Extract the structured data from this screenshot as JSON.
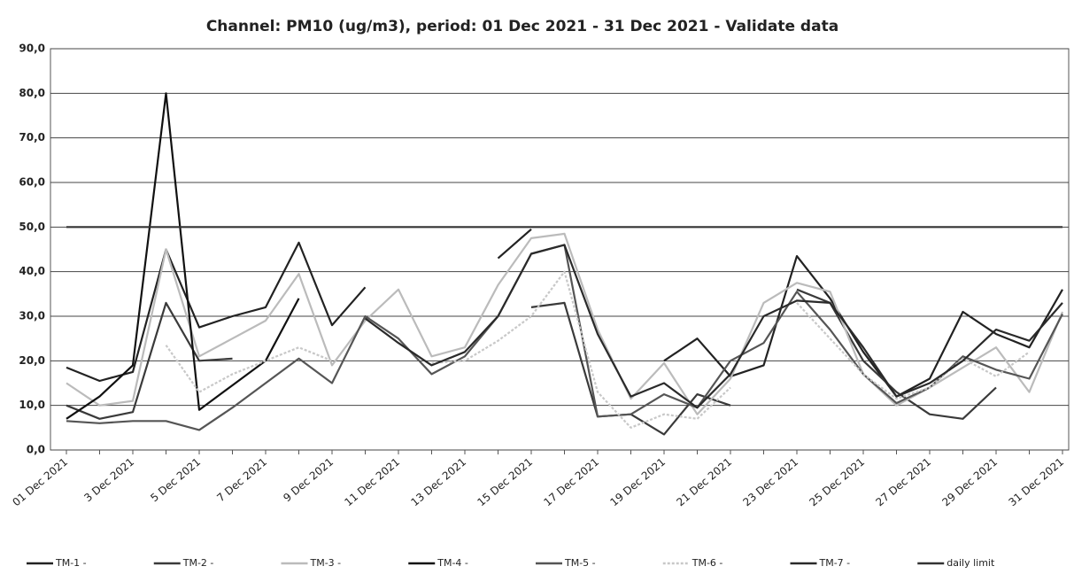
{
  "chart_data": {
    "type": "line",
    "title": "Channel: PM10 (ug/m3), period: 01 Dec 2021 - 31 Dec 2021 - Validate data",
    "categories": [
      "01 Dec 2021",
      null,
      "3 Dec 2021",
      null,
      "5 Dec 2021",
      null,
      "7 Dec 2021",
      null,
      "9 Dec 2021",
      null,
      "11 Dec 2021",
      null,
      "13 Dec 2021",
      null,
      "15 Dec 2021",
      null,
      "17 Dec 2021",
      null,
      "19 Dec 2021",
      null,
      "21 Dec 2021",
      null,
      "23 Dec 2021",
      null,
      "25 Dec 2021",
      null,
      "27 Dec 2021",
      null,
      "29 Dec 2021",
      null,
      "31 Dec 2021"
    ],
    "ylim": [
      0,
      90
    ],
    "yticks": [
      {
        "value": 0,
        "label": "0,0"
      },
      {
        "value": 10,
        "label": "10,0"
      },
      {
        "value": 20,
        "label": "20,0"
      },
      {
        "value": 30,
        "label": "30,0"
      },
      {
        "value": 40,
        "label": "40,0"
      },
      {
        "value": 50,
        "label": "50,0"
      },
      {
        "value": 60,
        "label": "60,0"
      },
      {
        "value": 70,
        "label": "70,0"
      },
      {
        "value": 80,
        "label": "80,0"
      },
      {
        "value": 90,
        "label": "90,0"
      }
    ],
    "grid": true,
    "series": [
      {
        "name": "TM-1 -",
        "color": "#222222",
        "dash": false,
        "values": [
          18.5,
          15.5,
          17.5,
          45,
          27.5,
          30,
          32,
          46.5,
          28,
          36.5,
          null,
          null,
          null,
          43,
          49.5,
          null,
          null,
          null,
          20,
          25,
          16.5,
          19,
          43.5,
          34,
          22,
          12,
          16,
          31,
          26,
          23,
          36
        ]
      },
      {
        "name": "TM-2 -",
        "color": "#3a3a3a",
        "dash": false,
        "values": [
          10,
          7,
          8.5,
          33,
          20,
          20.5,
          null,
          null,
          null,
          null,
          null,
          null,
          null,
          null,
          32,
          33,
          7.5,
          8,
          3.5,
          12.5,
          10,
          null,
          36,
          33,
          20,
          13,
          8,
          7,
          14,
          null,
          null
        ]
      },
      {
        "name": "TM-3 -",
        "color": "#bbbbbb",
        "dash": false,
        "values": [
          15,
          10,
          11,
          45,
          21,
          25,
          29,
          39.5,
          19,
          29,
          36,
          21,
          23,
          37,
          47.5,
          48.5,
          27,
          11.5,
          19.5,
          8,
          16,
          33,
          37.5,
          35.5,
          17,
          10,
          14,
          18.5,
          23,
          13,
          31
        ]
      },
      {
        "name": "TM-4 -",
        "color": "#111111",
        "dash": false,
        "values": [
          7,
          12,
          19,
          80,
          9,
          14.5,
          20,
          34,
          null,
          null,
          null,
          null,
          null,
          null,
          null,
          null,
          null,
          null,
          null,
          null,
          null,
          null,
          null,
          null,
          null,
          null,
          null,
          null,
          null,
          null,
          null
        ]
      },
      {
        "name": "TM-5 -",
        "color": "#555555",
        "dash": false,
        "values": [
          6.5,
          6,
          6.5,
          6.5,
          4.5,
          9.5,
          15,
          20.5,
          15,
          30,
          25,
          17,
          21,
          30,
          44,
          46,
          7.5,
          8,
          12.5,
          9.5,
          20,
          24,
          35.5,
          27,
          17,
          10.5,
          14,
          21,
          18,
          16,
          30.5
        ]
      },
      {
        "name": "TM-6 -",
        "color": "#c8c8c8",
        "dash": true,
        "values": [
          null,
          null,
          null,
          23.5,
          13,
          17,
          20,
          23,
          20,
          null,
          null,
          19.5,
          20,
          24.5,
          30,
          40,
          13,
          5,
          8,
          7,
          14,
          null,
          33,
          25,
          17,
          11.5,
          14,
          20.5,
          16.5,
          22,
          null
        ]
      },
      {
        "name": "TM-7 -",
        "color": "#2a2a2a",
        "dash": false,
        "values": [
          null,
          null,
          null,
          null,
          null,
          null,
          null,
          null,
          null,
          29.5,
          24,
          19,
          22,
          30,
          44,
          46,
          26,
          12,
          15,
          9.5,
          17,
          30,
          33.5,
          33,
          23,
          12,
          15,
          20,
          27,
          24.5,
          33
        ]
      },
      {
        "name": "daily limit",
        "color": "#333333",
        "dash": false,
        "values": [
          50,
          50,
          50,
          50,
          50,
          50,
          50,
          50,
          50,
          50,
          50,
          50,
          50,
          50,
          50,
          50,
          50,
          50,
          50,
          50,
          50,
          50,
          50,
          50,
          50,
          50,
          50,
          50,
          50,
          50,
          50
        ]
      }
    ]
  }
}
